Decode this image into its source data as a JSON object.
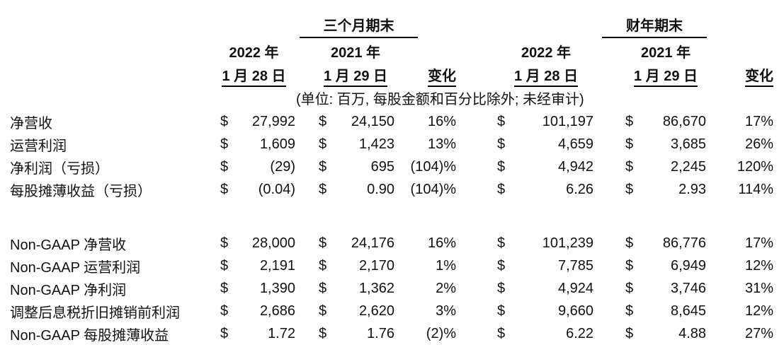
{
  "page": {
    "background_color": "#ffffff",
    "text_color": "#111111"
  },
  "table": {
    "currency_symbol": "$",
    "group_headers": {
      "quarter": "三个月期末",
      "fiscal_year": "财年期末"
    },
    "col_headers": {
      "q2022_year": "2022 年",
      "q2022_date": "1 月 28 日",
      "q2021_year": "2021 年",
      "q2021_date": "1 月 29 日",
      "q_change": "变化",
      "fy2022_year": "2022 年",
      "fy2022_date": "1 月 28 日",
      "fy2021_year": "2021 年",
      "fy2021_date": "1 月 29 日",
      "fy_change": "变化"
    },
    "units_note": "(单位: 百万, 每股金额和百分比除外; 未经审计)",
    "rows": [
      {
        "label": "净营收",
        "q2022": "27,992",
        "q2021": "24,150",
        "q_change": "16%",
        "fy2022": "101,197",
        "fy2021": "86,670",
        "fy_change": "17%"
      },
      {
        "label": "运营利润",
        "q2022": "1,609",
        "q2021": "1,423",
        "q_change": "13%",
        "fy2022": "4,659",
        "fy2021": "3,685",
        "fy_change": "26%"
      },
      {
        "label": "净利润（亏损）",
        "q2022": "(29)",
        "q2021": "695",
        "q_change": "(104)%",
        "fy2022": "4,942",
        "fy2021": "2,245",
        "fy_change": "120%"
      },
      {
        "label": "每股摊薄收益（亏损）",
        "q2022": "(0.04)",
        "q2021": "0.90",
        "q_change": "(104)%",
        "fy2022": "6.26",
        "fy2021": "2.93",
        "fy_change": "114%"
      },
      {
        "label": "Non-GAAP 净营收",
        "spacer_before": true,
        "q2022": "28,000",
        "q2021": "24,176",
        "q_change": "16%",
        "fy2022": "101,239",
        "fy2021": "86,776",
        "fy_change": "17%"
      },
      {
        "label": "Non-GAAP 运营利润",
        "q2022": "2,191",
        "q2021": "2,170",
        "q_change": "1%",
        "fy2022": "7,785",
        "fy2021": "6,949",
        "fy_change": "12%"
      },
      {
        "label": "Non-GAAP 净利润",
        "q2022": "1,390",
        "q2021": "1,362",
        "q_change": "2%",
        "fy2022": "4,924",
        "fy2021": "3,746",
        "fy_change": "31%"
      },
      {
        "label": "调整后息税折旧摊销前利润",
        "q2022": "2,686",
        "q2021": "2,620",
        "q_change": "3%",
        "fy2022": "9,660",
        "fy2021": "8,645",
        "fy_change": "12%"
      },
      {
        "label": "Non-GAAP 每股摊薄收益",
        "q2022": "1.72",
        "q2021": "1.76",
        "q_change": "(2)%",
        "fy2022": "6.22",
        "fy2021": "4.88",
        "fy_change": "27%"
      }
    ]
  }
}
